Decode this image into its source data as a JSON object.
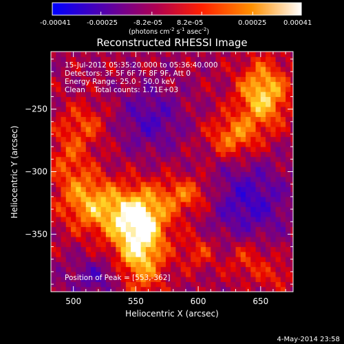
{
  "chart_data": {
    "type": "heatmap",
    "title": "Reconstructed RHESSI Image",
    "xlabel": "Heliocentric X (arcsec)",
    "ylabel": "Heliocentric Y (arcsec)",
    "xlim": [
      482,
      676
    ],
    "ylim": [
      -396,
      -204
    ],
    "x_ticks": [
      500,
      550,
      600,
      650
    ],
    "y_ticks": [
      -250,
      -300,
      -350
    ],
    "colorbar": {
      "ticks": [
        "-0.00041",
        "-0.00025",
        "-8.2e-05",
        "8.2e-05",
        "0.00025",
        "0.00041"
      ],
      "tick_values": [
        -0.00041,
        -0.00025,
        -8.2e-05,
        8.2e-05,
        0.00025,
        0.00041
      ],
      "range": [
        -0.00041,
        0.00041
      ],
      "units_prefix": "(photons cm",
      "units_exp1": "-2",
      "units_mid": " s",
      "units_exp2": "-1",
      "units_mid2": " asec",
      "units_exp3": "-2",
      "units_suffix": ")",
      "colors": [
        "#0000ff",
        "#5000b0",
        "#b00050",
        "#ff2000",
        "#ff9000",
        "#ffffff"
      ]
    },
    "annotations": [
      "15-Jul-2012 05:35:20.000 to 05:36:40.000",
      "Detectors: 3F 5F 6F 7F 8F 9F, Att 0",
      "Energy Range: 25.0 - 50.0 keV",
      "Clean    Total counts: 1.71E+03"
    ],
    "peak_label": "Position of Peak = [553,-362]",
    "peak": [
      553,
      -362
    ],
    "sources": [
      {
        "x": 553,
        "y": -358,
        "amp": 0.00041,
        "sx": 14,
        "sy": 26
      },
      {
        "x": 538,
        "y": -334,
        "amp": 0.00026,
        "sx": 26,
        "sy": 14
      },
      {
        "x": 510,
        "y": -318,
        "amp": 0.0002,
        "sx": 16,
        "sy": 14
      },
      {
        "x": 590,
        "y": -318,
        "amp": 0.0002,
        "sx": 16,
        "sy": 10
      },
      {
        "x": 652,
        "y": -238,
        "amp": 0.00036,
        "sx": 14,
        "sy": 18
      },
      {
        "x": 628,
        "y": -272,
        "amp": 0.00024,
        "sx": 14,
        "sy": 12
      },
      {
        "x": 508,
        "y": -262,
        "amp": 0.00016,
        "sx": 14,
        "sy": 12
      },
      {
        "x": 496,
        "y": -290,
        "amp": 0.00015,
        "sx": 12,
        "sy": 14
      },
      {
        "x": 600,
        "y": -364,
        "amp": 0.00014,
        "sx": 10,
        "sy": 10
      },
      {
        "x": 640,
        "y": -370,
        "amp": 0.00015,
        "sx": 12,
        "sy": 12
      },
      {
        "x": 664,
        "y": -384,
        "amp": 0.00012,
        "sx": 8,
        "sy": 8
      },
      {
        "x": 562,
        "y": -258,
        "amp": -0.00018,
        "sx": 18,
        "sy": 18
      },
      {
        "x": 640,
        "y": -324,
        "amp": -0.00022,
        "sx": 22,
        "sy": 22
      },
      {
        "x": 520,
        "y": -384,
        "amp": -0.00016,
        "sx": 18,
        "sy": 10
      }
    ]
  },
  "footer": {
    "date": "4-May-2014 23:58"
  }
}
